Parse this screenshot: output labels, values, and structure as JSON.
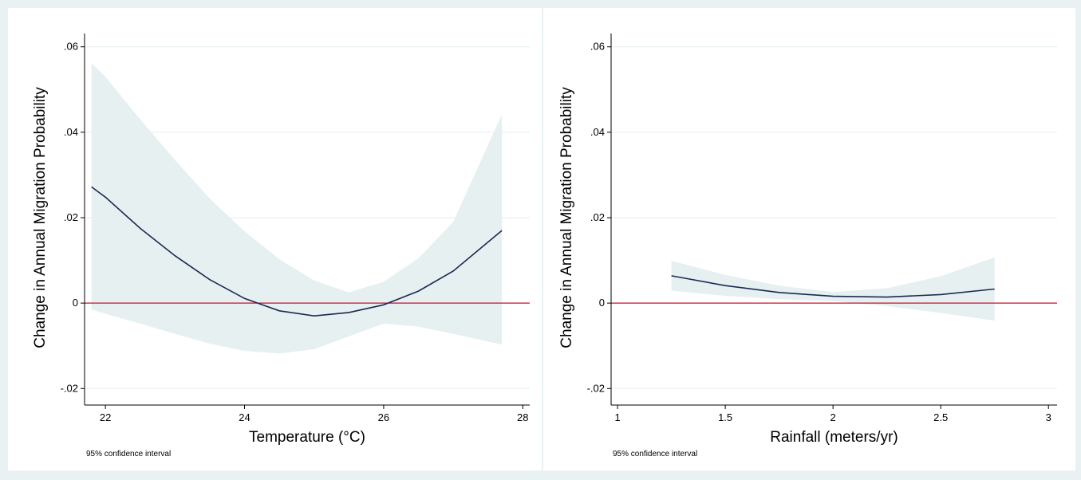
{
  "colors": {
    "figure_background": "#e9f1f2",
    "panel_background": "#ffffff",
    "ci_band": "#e6f0f1",
    "fit_line": "#1a2a52",
    "zero_line": "#c8102e",
    "grid": "#e6eded"
  },
  "chart_data": [
    {
      "type": "line",
      "title": "",
      "xlabel": "Temperature (°C)",
      "ylabel": "Change in Annual Migration Probability",
      "note": "95% confidence interval",
      "xlim": [
        21.7,
        28.1
      ],
      "ylim": [
        -0.022,
        0.062
      ],
      "x_ticks": [
        22,
        24,
        26,
        28
      ],
      "x_tick_labels": [
        "22",
        "24",
        "26",
        "28"
      ],
      "y_ticks": [
        -0.02,
        0,
        0.02,
        0.04,
        0.06
      ],
      "y_tick_labels": [
        "-.02",
        "0",
        ".02",
        ".04",
        ".06"
      ],
      "grid": true,
      "reference_line": {
        "y": 0,
        "color": "red"
      },
      "series": [
        {
          "x": [
            21.8,
            22.0,
            22.5,
            23.0,
            23.5,
            24.0,
            24.5,
            25.0,
            25.5,
            26.0,
            26.5,
            27.0,
            27.7
          ],
          "y": [
            0.0272,
            0.0248,
            0.0175,
            0.0111,
            0.0055,
            0.0011,
            -0.0018,
            -0.003,
            -0.0022,
            -0.0004,
            0.0028,
            0.0075,
            0.017
          ],
          "ci_upper": [
            0.0562,
            0.053,
            0.043,
            0.0335,
            0.0245,
            0.0168,
            0.0103,
            0.0053,
            0.0025,
            0.005,
            0.0105,
            0.019,
            0.0442
          ],
          "ci_lower": [
            -0.0015,
            -0.0025,
            -0.0048,
            -0.0072,
            -0.0095,
            -0.0112,
            -0.0118,
            -0.0108,
            -0.0078,
            -0.0048,
            -0.0055,
            -0.0072,
            -0.0097
          ]
        }
      ]
    },
    {
      "type": "line",
      "title": "",
      "xlabel": "Rainfall (meters/yr)",
      "ylabel": "Change in Annual Migration Probability",
      "note": "95% confidence interval",
      "xlim": [
        0.97,
        3.04
      ],
      "ylim": [
        -0.022,
        0.062
      ],
      "x_ticks": [
        1,
        1.5,
        2,
        2.5,
        3
      ],
      "x_tick_labels": [
        "1",
        "1.5",
        "2",
        "2.5",
        "3"
      ],
      "y_ticks": [
        -0.02,
        0,
        0.02,
        0.04,
        0.06
      ],
      "y_tick_labels": [
        "-.02",
        "0",
        ".02",
        ".04",
        ".06"
      ],
      "grid": true,
      "reference_line": {
        "y": 0,
        "color": "red"
      },
      "series": [
        {
          "x": [
            1.25,
            1.5,
            1.75,
            2.0,
            2.25,
            2.5,
            2.75
          ],
          "y": [
            0.0064,
            0.0041,
            0.0025,
            0.0016,
            0.0014,
            0.002,
            0.0033
          ],
          "ci_upper": [
            0.0099,
            0.0066,
            0.0041,
            0.0026,
            0.0035,
            0.0063,
            0.0107
          ],
          "ci_lower": [
            0.0029,
            0.0017,
            0.0009,
            0.0005,
            -0.0007,
            -0.0023,
            -0.0041
          ]
        }
      ]
    }
  ]
}
